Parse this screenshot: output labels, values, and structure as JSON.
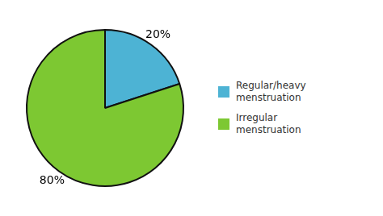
{
  "chart_data": {
    "type": "pie",
    "categories": [
      "Regular/heavy\nmenstruation",
      "Irregular\nmenstruation"
    ],
    "values": [
      20,
      80
    ],
    "value_labels": [
      "20%",
      "80%"
    ],
    "colors": [
      "#4db3d4",
      "#7dc832"
    ],
    "data_labels": true,
    "legend": "right"
  }
}
